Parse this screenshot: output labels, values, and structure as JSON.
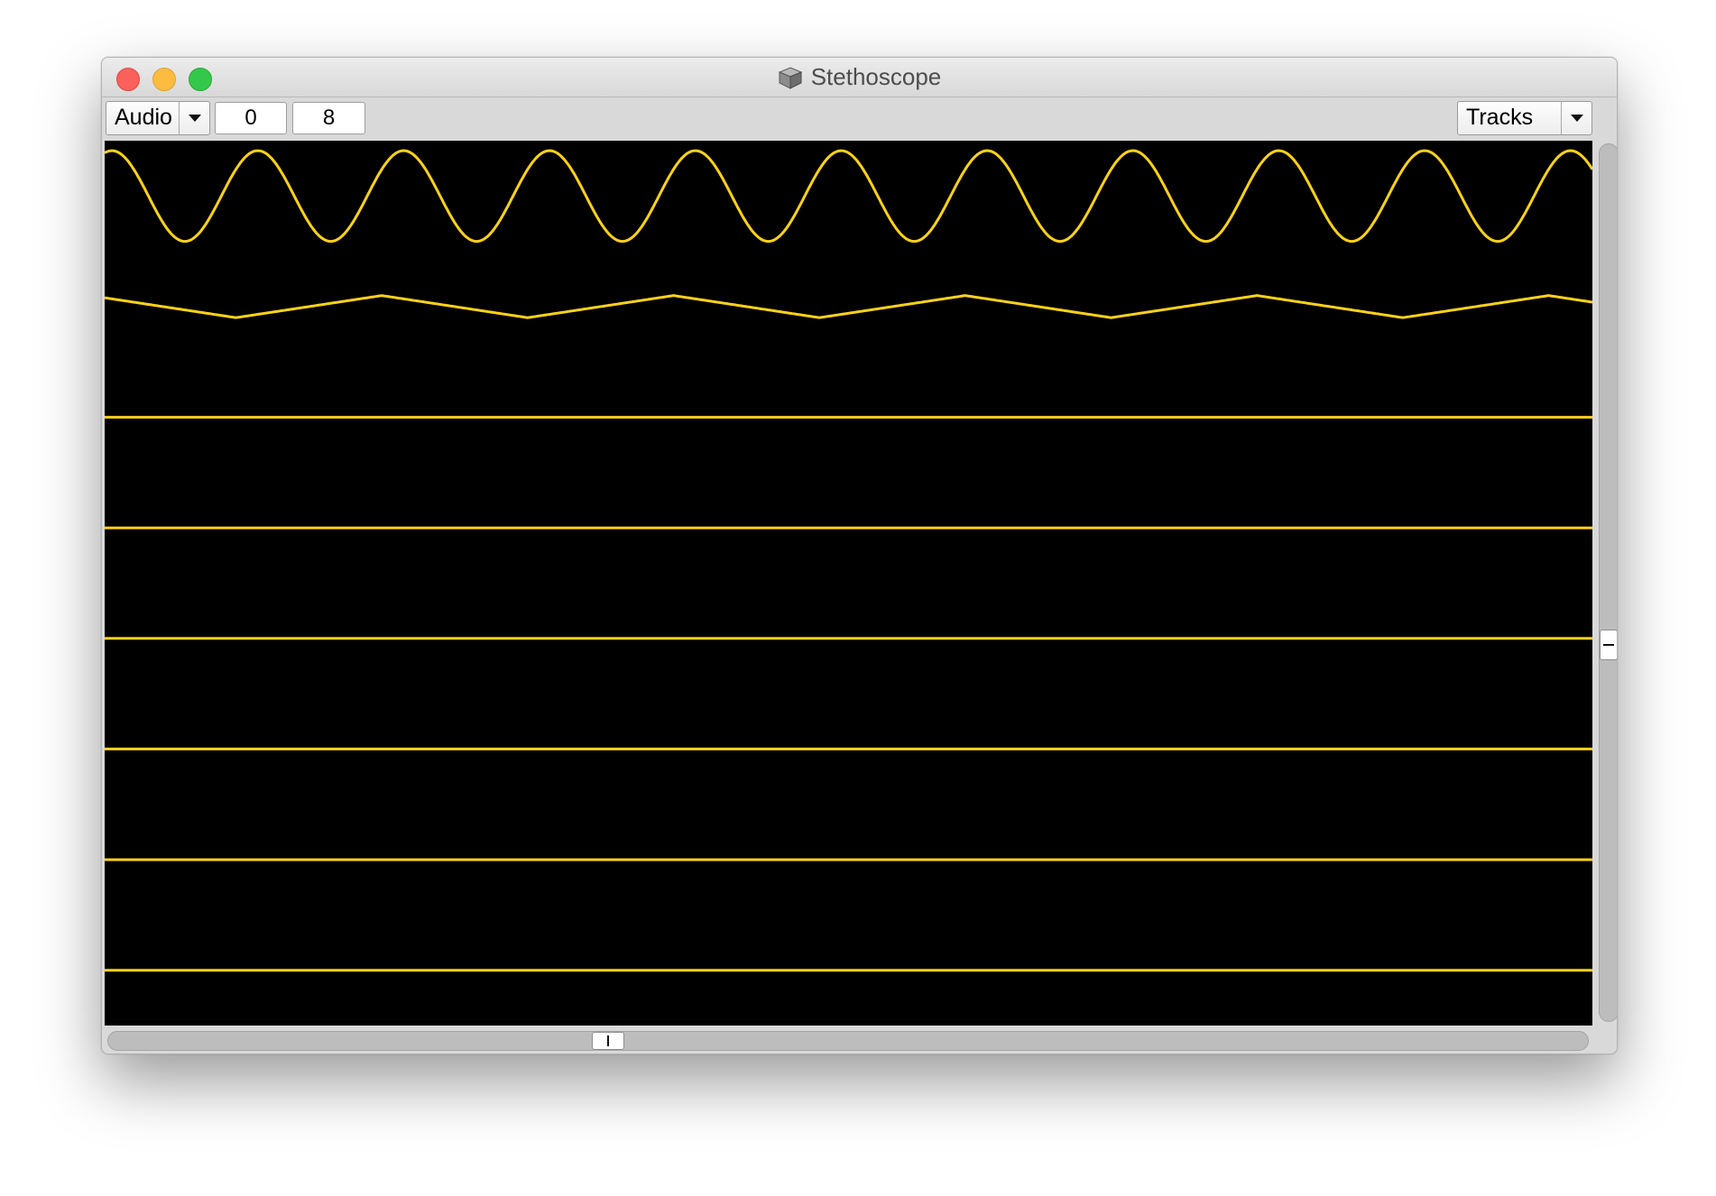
{
  "window": {
    "title": "Stethoscope",
    "icon": "app-cube-icon"
  },
  "toolbar": {
    "rate_popup": {
      "label": "Audio",
      "icon": "chevron-down-icon"
    },
    "channel_offset": "0",
    "num_channels": "8",
    "style_popup": {
      "label": "Tracks",
      "icon": "chevron-down-icon"
    }
  },
  "scope": {
    "background": "#000000",
    "trace_color": "#ffd21a",
    "waveform": "sine",
    "channels": [
      {
        "shape": "sine",
        "amplitude": 0.41,
        "cycles": 10.2,
        "phase": 0.2
      },
      {
        "shape": "triangle",
        "amplitude": 0.1,
        "cycles": 5.1,
        "phase": 0.3
      },
      {
        "shape": "flat",
        "amplitude": 0,
        "cycles": 0,
        "phase": 0
      },
      {
        "shape": "flat",
        "amplitude": 0,
        "cycles": 0,
        "phase": 0
      },
      {
        "shape": "flat",
        "amplitude": 0,
        "cycles": 0,
        "phase": 0
      },
      {
        "shape": "flat",
        "amplitude": 0,
        "cycles": 0,
        "phase": 0
      },
      {
        "shape": "flat",
        "amplitude": 0,
        "cycles": 0,
        "phase": 0
      },
      {
        "shape": "flat",
        "amplitude": 0,
        "cycles": 0,
        "phase": 0
      }
    ]
  },
  "scrollbars": {
    "vertical_value": 0.5,
    "horizontal_value": 0.34
  }
}
